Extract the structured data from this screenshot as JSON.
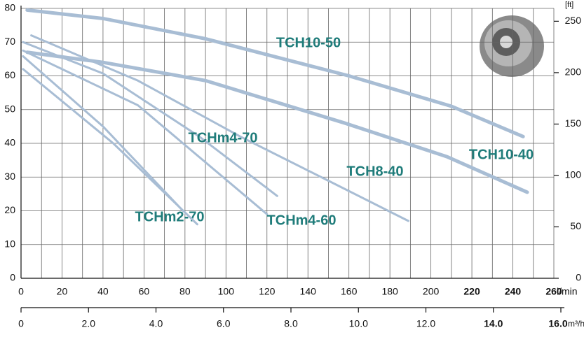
{
  "chart_data": {
    "type": "line",
    "x_unit": "l/min",
    "x2_unit": "m³/h",
    "y2_unit": "[ft]",
    "xlim": [
      0,
      260
    ],
    "xticks": [
      0,
      20,
      40,
      60,
      80,
      100,
      120,
      140,
      160,
      180,
      200,
      220,
      240,
      260
    ],
    "x2lim": [
      0,
      16
    ],
    "x2ticks": [
      0,
      {
        "value": 2,
        "label": "2.0"
      },
      {
        "value": 4,
        "label": "4.0"
      },
      {
        "value": 6,
        "label": "6.0"
      },
      {
        "value": 8,
        "label": "8.0"
      },
      {
        "value": 10,
        "label": "10.0"
      },
      {
        "value": 12,
        "label": "12.0"
      },
      {
        "value": 14,
        "label": "14.0"
      },
      {
        "value": 16,
        "label": "16.0"
      }
    ],
    "ylim": [
      0,
      80
    ],
    "yticks": [
      0,
      10,
      20,
      30,
      40,
      50,
      60,
      70,
      80
    ],
    "y2lim": [
      0,
      262.5
    ],
    "y2ticks": [
      0,
      50,
      100,
      150,
      200,
      250
    ],
    "grid": true,
    "series": [
      {
        "name": "TCH10-50",
        "color": "#a8bdd4",
        "x": [
          3,
          40,
          90,
          160,
          210,
          245
        ],
        "values": [
          79.5,
          77,
          71,
          60,
          51,
          42
        ]
      },
      {
        "name": "TCH10-40",
        "color": "#a8bdd4",
        "x": [
          3,
          40,
          90,
          158,
          208,
          247
        ],
        "values": [
          67,
          64,
          58.6,
          46,
          36,
          25.5
        ]
      },
      {
        "name": "TCH8-40",
        "color": "#a8bdd4",
        "x": [
          5,
          57,
          107,
          151,
          189
        ],
        "values": [
          72,
          58.6,
          42,
          28.6,
          17
        ]
      },
      {
        "name": "TCHm4-70",
        "color": "#a8bdd4",
        "x": [
          1,
          40,
          87,
          125
        ],
        "values": [
          70,
          60.7,
          42,
          24.4
        ]
      },
      {
        "name": "TCHm4-60",
        "color": "#a8bdd4",
        "x": [
          1,
          57,
          120
        ],
        "values": [
          67.5,
          51.3,
          19
        ]
      },
      {
        "name": "TCHm2-70",
        "color": "#a8bdd4",
        "x": [
          1,
          40,
          79
        ],
        "values": [
          65.8,
          45,
          20
        ]
      },
      {
        "color": "#a8bdd4",
        "x": [
          1,
          45,
          86
        ],
        "values": [
          62,
          40,
          16
        ]
      }
    ]
  }
}
